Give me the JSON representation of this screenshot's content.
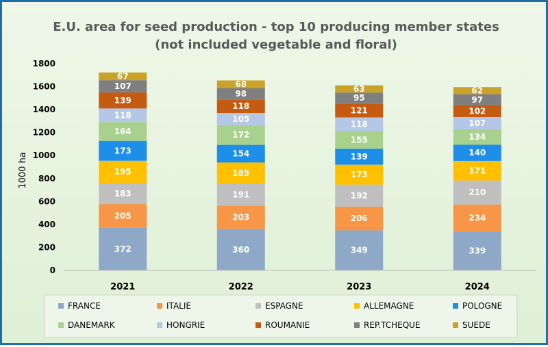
{
  "chart_data": {
    "type": "bar",
    "stacked": true,
    "title": "E.U. area for seed production - top 10 producing member states",
    "subtitle": "(not included vegetable and floral)",
    "xlabel": "",
    "ylabel": "1000 ha",
    "ylim": [
      0,
      1800
    ],
    "yticks": [
      "0",
      "200",
      "400",
      "600",
      "800",
      "1000",
      "1200",
      "1400",
      "1600",
      "1800"
    ],
    "grid": false,
    "legend_position": "bottom",
    "categories": [
      "2021",
      "2022",
      "2023",
      "2024"
    ],
    "series": [
      {
        "name": "FRANCE",
        "color": "#8ea9c8",
        "values": [
          372,
          360,
          349,
          339
        ]
      },
      {
        "name": "ITALIE",
        "color": "#f79646",
        "values": [
          205,
          203,
          206,
          234
        ]
      },
      {
        "name": "ESPAGNE",
        "color": "#bfbfbf",
        "values": [
          183,
          191,
          192,
          210
        ]
      },
      {
        "name": "ALLEMAGNE",
        "color": "#ffc000",
        "values": [
          195,
          185,
          173,
          171
        ]
      },
      {
        "name": "POLOGNE",
        "color": "#1e8fe8",
        "values": [
          173,
          154,
          139,
          140
        ]
      },
      {
        "name": "DANEMARK",
        "color": "#a9d18e",
        "values": [
          164,
          172,
          155,
          134
        ]
      },
      {
        "name": "HONGRIE",
        "color": "#b4c7e7",
        "values": [
          118,
          105,
          118,
          107
        ]
      },
      {
        "name": "ROUMANIE",
        "color": "#c55a11",
        "values": [
          139,
          118,
          121,
          102
        ]
      },
      {
        "name": "REP.TCHEQUE",
        "color": "#7f7f7f",
        "values": [
          107,
          98,
          95,
          97
        ]
      },
      {
        "name": "SUEDE",
        "color": "#c9a227",
        "values": [
          67,
          68,
          63,
          62
        ]
      }
    ]
  }
}
